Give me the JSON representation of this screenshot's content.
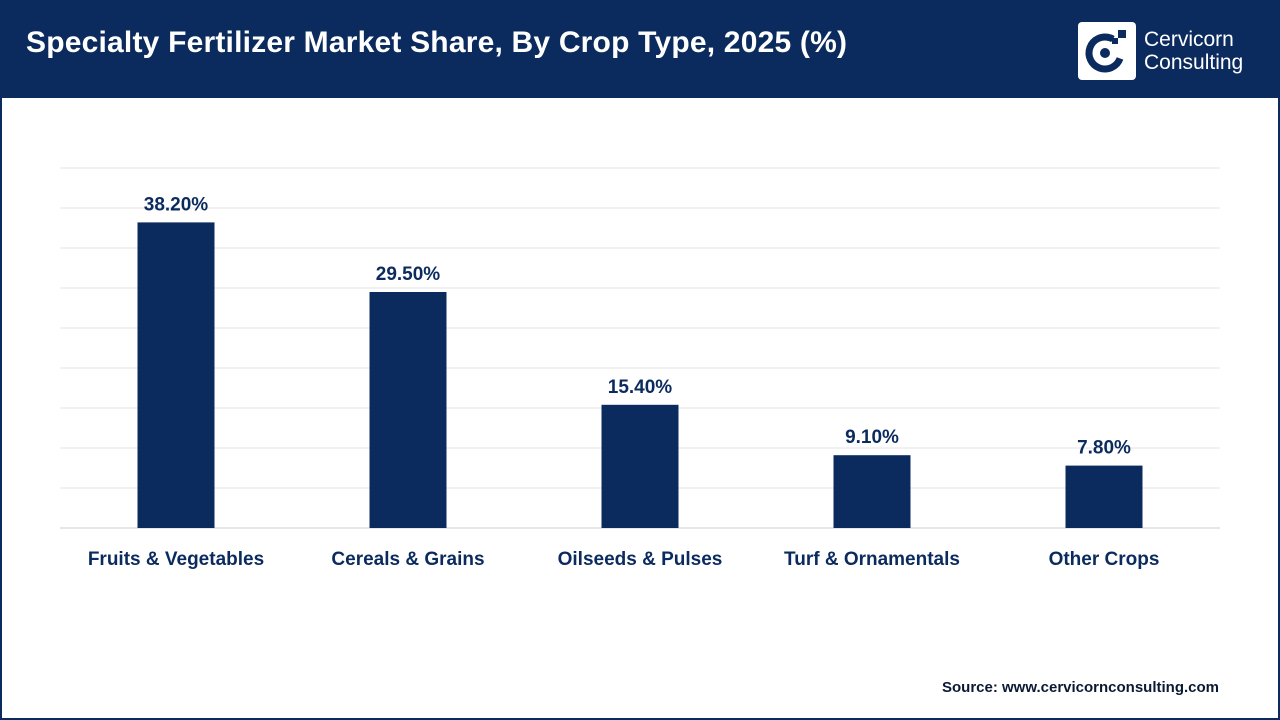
{
  "header": {
    "title": "Specialty Fertilizer Market Share, By Crop Type, 2025 (%)",
    "logo_line1": "Cervicorn",
    "logo_line2": "Consulting"
  },
  "colors": {
    "header_bg": "#0b2b5e",
    "bar": "#0b2b5e",
    "label": "#0b2b5e",
    "grid": "#e3e3e3"
  },
  "icons": {
    "logo": "cervicorn-logo-icon"
  },
  "chart_data": {
    "type": "bar",
    "categories": [
      "Fruits & Vegetables",
      "Cereals & Grains",
      "Oilseeds & Pulses",
      "Turf & Ornamentals",
      "Other Crops"
    ],
    "values": [
      38.2,
      29.5,
      15.4,
      9.1,
      7.8
    ],
    "value_labels": [
      "38.20%",
      "29.50%",
      "15.40%",
      "9.10%",
      "7.80%"
    ],
    "title": "Specialty Fertilizer Market Share, By Crop Type, 2025 (%)",
    "xlabel": "",
    "ylabel": "",
    "ylim": [
      0,
      45
    ],
    "grid": true,
    "legend": "none"
  },
  "footer": {
    "source": "Source: www.cervicornconsulting.com"
  }
}
